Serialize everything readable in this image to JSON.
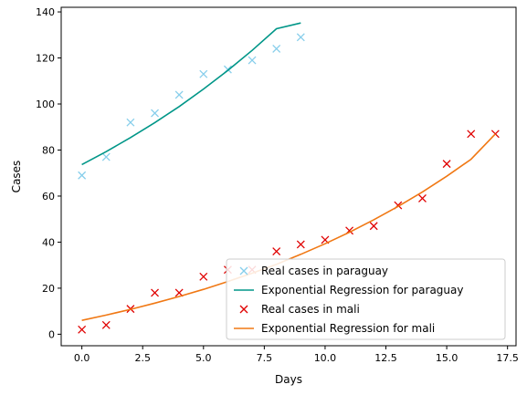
{
  "chart_data": {
    "type": "scatter",
    "title": "",
    "xlabel": "Days",
    "ylabel": "Cases",
    "xlim": [
      -0.85,
      17.85
    ],
    "ylim": [
      -5,
      142
    ],
    "xticks": [
      0.0,
      2.5,
      5.0,
      7.5,
      10.0,
      12.5,
      15.0,
      17.5
    ],
    "xtick_labels": [
      "0.0",
      "2.5",
      "5.0",
      "7.5",
      "10.0",
      "12.5",
      "15.0",
      "17.5"
    ],
    "yticks": [
      0,
      20,
      40,
      60,
      80,
      100,
      120,
      140
    ],
    "ytick_labels": [
      "0",
      "20",
      "40",
      "60",
      "80",
      "100",
      "120",
      "140"
    ],
    "grid": false,
    "legend_position": "lower-right",
    "series": [
      {
        "name": "Real cases in paraguay",
        "kind": "scatter",
        "marker": "x",
        "color": "#87ceeb",
        "x": [
          0,
          1,
          2,
          3,
          4,
          5,
          6,
          7,
          8,
          9
        ],
        "y": [
          69,
          77,
          92,
          96,
          104,
          113,
          115,
          119,
          124,
          129
        ]
      },
      {
        "name": "Exponential Regression for paraguay",
        "kind": "line",
        "color": "#009688",
        "x": [
          0,
          1,
          2,
          3,
          4,
          5,
          6,
          7,
          8,
          9
        ],
        "y": [
          73.7,
          79.3,
          85.4,
          91.9,
          98.9,
          106.5,
          114.6,
          123.3,
          132.7,
          135.2
        ]
      },
      {
        "name": "Real cases in mali",
        "kind": "scatter",
        "marker": "x",
        "color": "#e00000",
        "x": [
          0,
          1,
          2,
          3,
          4,
          5,
          6,
          7,
          8,
          9,
          10,
          11,
          12,
          13,
          14,
          15,
          16,
          17
        ],
        "y": [
          2,
          4,
          11,
          18,
          18,
          25,
          28,
          28,
          36,
          39,
          41,
          45,
          47,
          56,
          59,
          74,
          87,
          87
        ]
      },
      {
        "name": "Exponential Regression for mali",
        "kind": "line",
        "color": "#f07814",
        "x": [
          0,
          1,
          2,
          3,
          4,
          5,
          6,
          7,
          8,
          9,
          10,
          11,
          12,
          13,
          14,
          15,
          16,
          17
        ],
        "y": [
          6.0,
          8.3,
          10.8,
          13.5,
          16.4,
          19.5,
          22.9,
          26.5,
          30.4,
          34.7,
          39.3,
          44.3,
          49.7,
          55.5,
          61.8,
          68.6,
          76.0,
          87.0
        ]
      }
    ],
    "legend": [
      "Real cases in paraguay",
      "Exponential Regression for paraguay",
      "Real cases in mali",
      "Exponential Regression for mali"
    ]
  }
}
